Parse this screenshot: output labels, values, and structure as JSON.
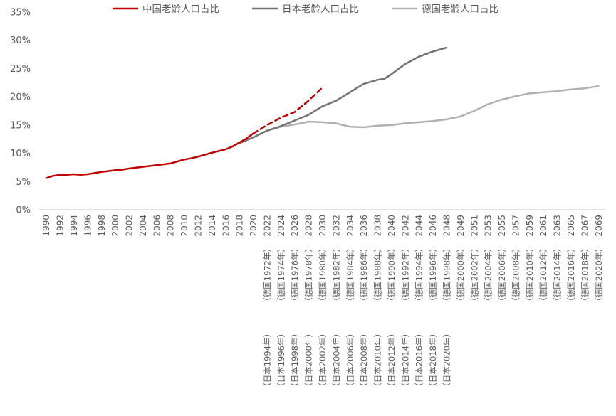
{
  "chart_data": {
    "type": "line",
    "title": "",
    "xlabel": "",
    "ylabel": "",
    "ylim": [
      0,
      35
    ],
    "yticks": [
      "0%",
      "5%",
      "10%",
      "15%",
      "20%",
      "25%",
      "30%",
      "35%"
    ],
    "ytick_values": [
      0,
      5,
      10,
      15,
      20,
      25,
      30,
      35
    ],
    "grid": false,
    "legend_position": "top",
    "colors": {
      "china": "#c00000",
      "japan": "#767171",
      "germany": "#b1b1b1",
      "axis": "#bfbfbf",
      "text": "#595959"
    },
    "x_labels": [
      "1990",
      "1992",
      "1994",
      "1996",
      "1998",
      "2000",
      "2002",
      "2004",
      "2006",
      "2008",
      "2010",
      "2012",
      "2014",
      "2016",
      "2018",
      "2020",
      "2022",
      "2024",
      "2026",
      "2028",
      "2030",
      "2032",
      "2034",
      "2036",
      "2038",
      "2040",
      "2042",
      "2044",
      "2046",
      "2048",
      "2049",
      "2051",
      "2053",
      "2055",
      "2057",
      "2059",
      "2061",
      "2063",
      "2065",
      "2067",
      "2069"
    ],
    "x_label_sub": [
      {
        "japan": "",
        "germany": ""
      },
      {
        "japan": "",
        "germany": ""
      },
      {
        "japan": "",
        "germany": ""
      },
      {
        "japan": "",
        "germany": ""
      },
      {
        "japan": "",
        "germany": ""
      },
      {
        "japan": "",
        "germany": ""
      },
      {
        "japan": "",
        "germany": ""
      },
      {
        "japan": "",
        "germany": ""
      },
      {
        "japan": "",
        "germany": ""
      },
      {
        "japan": "",
        "germany": ""
      },
      {
        "japan": "",
        "germany": ""
      },
      {
        "japan": "",
        "germany": ""
      },
      {
        "japan": "",
        "germany": ""
      },
      {
        "japan": "",
        "germany": ""
      },
      {
        "japan": "",
        "germany": ""
      },
      {
        "japan": "",
        "germany": ""
      },
      {
        "japan": "（日本1994年）",
        "germany": "（德国1972年）"
      },
      {
        "japan": "（日本1996年）",
        "germany": "（德国1974年）"
      },
      {
        "japan": "（日本1998年）",
        "germany": "（德国1976年）"
      },
      {
        "japan": "（日本2000年）",
        "germany": "（德国1978年）"
      },
      {
        "japan": "（日本2002年）",
        "germany": "（德国1980年）"
      },
      {
        "japan": "（日本2004年）",
        "germany": "（德国1982年）"
      },
      {
        "japan": "（日本2006年）",
        "germany": "（德国1984年）"
      },
      {
        "japan": "（日本2008年）",
        "germany": "（德国1986年）"
      },
      {
        "japan": "（日本2010年）",
        "germany": "（德国1988年）"
      },
      {
        "japan": "（日本2012年）",
        "germany": "（德国1990年）"
      },
      {
        "japan": "（日本2014年）",
        "germany": "（德国1992年）"
      },
      {
        "japan": "（日本2016年）",
        "germany": "（德国1994年）"
      },
      {
        "japan": "（日本2018年）",
        "germany": "（德国1996年）"
      },
      {
        "japan": "（日本2020年）",
        "germany": "（德国1998年）"
      },
      {
        "japan": "",
        "germany": "（德国2000年）"
      },
      {
        "japan": "",
        "germany": "（德国2002年）"
      },
      {
        "japan": "",
        "germany": "（德国2004年）"
      },
      {
        "japan": "",
        "germany": "（德国2006年）"
      },
      {
        "japan": "",
        "germany": "（德国2008年）"
      },
      {
        "japan": "",
        "germany": "（德国2010年）"
      },
      {
        "japan": "",
        "germany": "（德国2012年）"
      },
      {
        "japan": "",
        "germany": "（德国2014年）"
      },
      {
        "japan": "",
        "germany": "（德国2016年）"
      },
      {
        "japan": "",
        "germany": "（德国2018年）"
      },
      {
        "japan": "",
        "germany": "（德国2020年）"
      }
    ],
    "series": [
      {
        "name": "中国老龄人口占比",
        "key": "china",
        "x_index": [
          0,
          0.5,
          1,
          1.5,
          2,
          2.5,
          3,
          3.5,
          4,
          5,
          5.5,
          6,
          7,
          8,
          9,
          10,
          10.5,
          11,
          12,
          13,
          13.5,
          14,
          14.5,
          15
        ],
        "values": [
          5.6,
          6.0,
          6.2,
          6.2,
          6.3,
          6.2,
          6.3,
          6.5,
          6.7,
          7.0,
          7.1,
          7.3,
          7.6,
          7.9,
          8.2,
          8.9,
          9.1,
          9.4,
          10.1,
          10.7,
          11.2,
          11.9,
          12.6,
          13.5
        ],
        "projection_x_index": [
          15,
          16,
          17,
          18,
          19,
          20
        ],
        "projection_values": [
          13.5,
          15.0,
          16.3,
          17.3,
          19.3,
          21.6
        ]
      },
      {
        "name": "日本老龄人口占比",
        "key": "japan",
        "x_index": [
          14,
          15,
          16,
          17,
          18,
          19,
          20,
          21,
          22,
          23,
          24,
          24.5,
          25,
          26,
          27,
          28,
          29
        ],
        "values": [
          11.8,
          12.8,
          14.0,
          14.8,
          15.8,
          16.8,
          18.3,
          19.3,
          20.8,
          22.3,
          23.0,
          23.2,
          24.0,
          25.8,
          27.1,
          28.0,
          28.7
        ]
      },
      {
        "name": "德国老龄人口占比",
        "key": "germany",
        "x_index": [
          16,
          17,
          18,
          19,
          20,
          21,
          22,
          23,
          24,
          25,
          26,
          27,
          28,
          29,
          30,
          31,
          32,
          33,
          34,
          35,
          36,
          37,
          38,
          39,
          40
        ],
        "values": [
          14.0,
          14.7,
          15.1,
          15.6,
          15.5,
          15.3,
          14.7,
          14.6,
          14.9,
          15.0,
          15.3,
          15.5,
          15.7,
          16.0,
          16.5,
          17.5,
          18.7,
          19.5,
          20.1,
          20.6,
          20.8,
          21.0,
          21.3,
          21.5,
          21.9
        ]
      }
    ]
  }
}
